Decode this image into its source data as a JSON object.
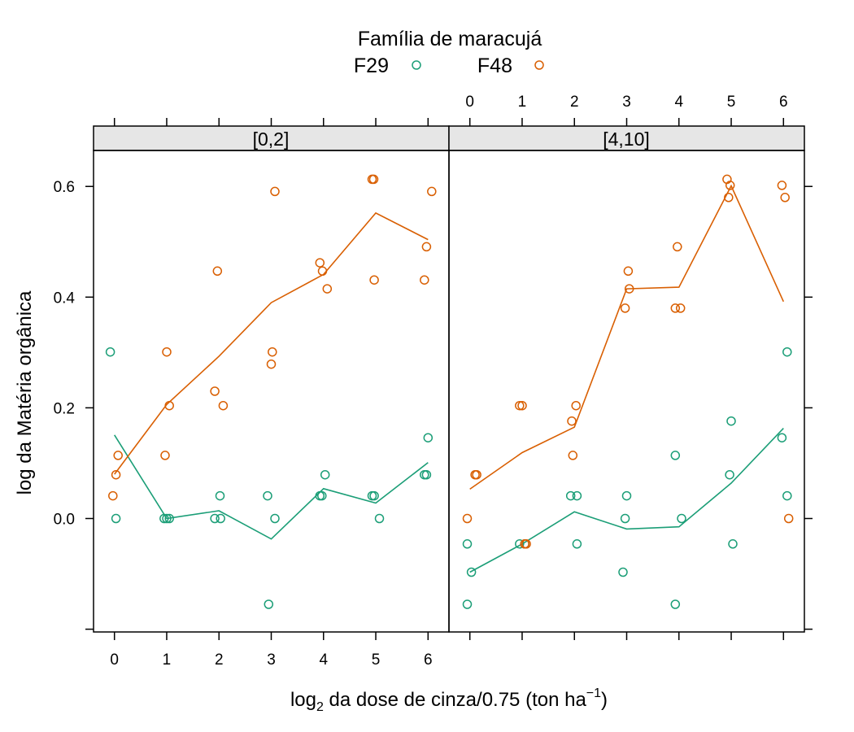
{
  "chart_data": {
    "type": "scatter",
    "legend": {
      "title": "Família de maracujá",
      "placement": "top",
      "entries": [
        {
          "name": "F29",
          "color": "#1b9e77"
        },
        {
          "name": "F48",
          "color": "#d95f02"
        }
      ]
    },
    "xlabel": {
      "prefix": "log",
      "sub": "2",
      "mid": " da dose de cinza/0.75 (ton ha",
      "sup": "−1",
      "suffix": ")"
    },
    "ylabel": "log da Matéria orgânica",
    "xlim": [
      -0.4,
      6.4
    ],
    "ylim": [
      -0.205,
      0.665
    ],
    "xticks": [
      0,
      1,
      2,
      3,
      4,
      5,
      6
    ],
    "yticks": [
      0.0,
      0.2,
      0.4,
      0.6
    ],
    "ytick_labels": [
      "0.0",
      "0.2",
      "0.4",
      "0.6"
    ],
    "extra_ytick": -0.2,
    "grid": false,
    "panels": [
      {
        "strip": "[0,2]",
        "series": [
          {
            "name": "F29",
            "points": [
              [
                -0.08,
                0.301
              ],
              [
                0.03,
                0.0
              ],
              [
                0.95,
                0.0
              ],
              [
                1.0,
                0.0
              ],
              [
                1.05,
                0.0
              ],
              [
                1.92,
                0.0
              ],
              [
                2.03,
                0.0
              ],
              [
                2.02,
                0.041
              ],
              [
                2.93,
                0.041
              ],
              [
                2.95,
                -0.155
              ],
              [
                3.07,
                0.0
              ],
              [
                3.93,
                0.041
              ],
              [
                3.97,
                0.041
              ],
              [
                4.03,
                0.079
              ],
              [
                4.93,
                0.041
              ],
              [
                4.97,
                0.041
              ],
              [
                5.07,
                0.0
              ],
              [
                5.93,
                0.079
              ],
              [
                5.97,
                0.079
              ],
              [
                6.0,
                0.146
              ]
            ],
            "line": [
              [
                0,
                0.151
              ],
              [
                1,
                0.0
              ],
              [
                2,
                0.014
              ],
              [
                3,
                -0.037
              ],
              [
                4,
                0.054
              ],
              [
                5,
                0.028
              ],
              [
                6,
                0.101
              ]
            ]
          },
          {
            "name": "F48",
            "points": [
              [
                -0.03,
                0.041
              ],
              [
                0.03,
                0.079
              ],
              [
                0.07,
                0.114
              ],
              [
                0.97,
                0.114
              ],
              [
                1.0,
                0.301
              ],
              [
                1.05,
                0.204
              ],
              [
                1.92,
                0.23
              ],
              [
                1.97,
                0.447
              ],
              [
                2.08,
                0.204
              ],
              [
                3.0,
                0.279
              ],
              [
                3.02,
                0.301
              ],
              [
                3.07,
                0.591
              ],
              [
                3.93,
                0.462
              ],
              [
                3.98,
                0.447
              ],
              [
                4.07,
                0.415
              ],
              [
                4.93,
                0.613
              ],
              [
                4.96,
                0.613
              ],
              [
                4.97,
                0.431
              ],
              [
                5.93,
                0.431
              ],
              [
                5.97,
                0.491
              ],
              [
                6.07,
                0.591
              ]
            ],
            "line": [
              [
                0,
                0.08
              ],
              [
                1,
                0.206
              ],
              [
                2,
                0.293
              ],
              [
                3,
                0.39
              ],
              [
                4,
                0.441
              ],
              [
                5,
                0.552
              ],
              [
                6,
                0.504
              ]
            ]
          }
        ]
      },
      {
        "strip": "[4,10]",
        "series": [
          {
            "name": "F29",
            "points": [
              [
                -0.05,
                -0.046
              ],
              [
                -0.05,
                -0.155
              ],
              [
                0.03,
                -0.097
              ],
              [
                0.95,
                -0.046
              ],
              [
                1.05,
                -0.046
              ],
              [
                1.93,
                0.041
              ],
              [
                2.05,
                0.041
              ],
              [
                2.05,
                -0.046
              ],
              [
                2.93,
                -0.097
              ],
              [
                2.97,
                0.0
              ],
              [
                3.0,
                0.041
              ],
              [
                3.93,
                0.114
              ],
              [
                3.93,
                -0.155
              ],
              [
                4.05,
                0.0
              ],
              [
                4.97,
                0.079
              ],
              [
                5.0,
                0.176
              ],
              [
                5.03,
                -0.046
              ],
              [
                5.97,
                0.146
              ],
              [
                6.07,
                0.301
              ],
              [
                6.07,
                0.041
              ]
            ],
            "line": [
              [
                0,
                -0.097
              ],
              [
                1,
                -0.046
              ],
              [
                2,
                0.012
              ],
              [
                3,
                -0.019
              ],
              [
                4,
                -0.015
              ],
              [
                5,
                0.064
              ],
              [
                6,
                0.163
              ]
            ]
          },
          {
            "name": "F48",
            "points": [
              [
                -0.05,
                0.0
              ],
              [
                0.1,
                0.079
              ],
              [
                0.13,
                0.079
              ],
              [
                0.95,
                0.204
              ],
              [
                1.0,
                0.204
              ],
              [
                1.05,
                -0.046
              ],
              [
                1.08,
                -0.046
              ],
              [
                1.95,
                0.176
              ],
              [
                1.97,
                0.114
              ],
              [
                2.03,
                0.204
              ],
              [
                2.97,
                0.38
              ],
              [
                3.03,
                0.447
              ],
              [
                3.05,
                0.415
              ],
              [
                3.93,
                0.38
              ],
              [
                3.97,
                0.491
              ],
              [
                4.03,
                0.38
              ],
              [
                4.92,
                0.613
              ],
              [
                4.95,
                0.58
              ],
              [
                4.98,
                0.602
              ],
              [
                5.97,
                0.602
              ],
              [
                6.03,
                0.58
              ],
              [
                6.1,
                0.0
              ]
            ],
            "line": [
              [
                0,
                0.053
              ],
              [
                1,
                0.119
              ],
              [
                2,
                0.165
              ],
              [
                3,
                0.415
              ],
              [
                4,
                0.418
              ],
              [
                5,
                0.601
              ],
              [
                6,
                0.392
              ]
            ]
          }
        ]
      }
    ]
  }
}
